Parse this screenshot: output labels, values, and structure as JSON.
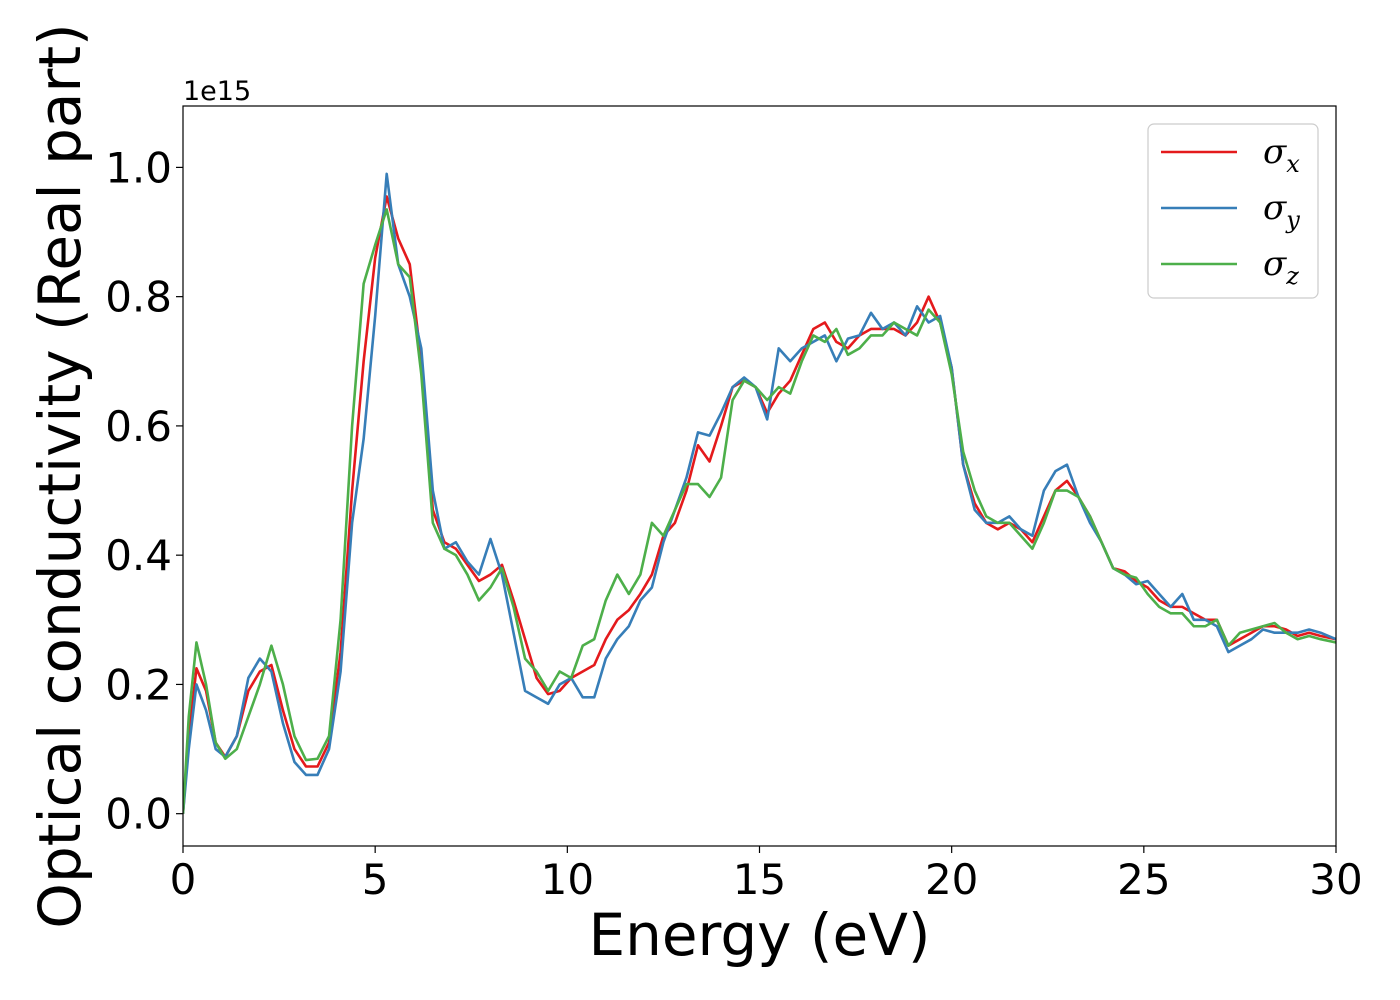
{
  "chart_data": {
    "type": "line",
    "title": "",
    "xlabel": "Energy (eV)",
    "ylabel": "Optical conductivity (Real part)",
    "y_offset_label": "1e15",
    "xlim": [
      0,
      30
    ],
    "ylim": [
      -0.05,
      1.095
    ],
    "xticks": [
      0,
      5,
      10,
      15,
      20,
      25,
      30
    ],
    "xtick_labels": [
      "0",
      "5",
      "10",
      "15",
      "20",
      "25",
      "30"
    ],
    "yticks": [
      0.0,
      0.2,
      0.4,
      0.6,
      0.8,
      1.0
    ],
    "ytick_labels": [
      "0.0",
      "0.2",
      "0.4",
      "0.6",
      "0.8",
      "1.0"
    ],
    "grid": false,
    "legend_position": "top-right",
    "series": [
      {
        "name": "σx",
        "symbol": "σ",
        "subscript": "x",
        "color": "#e41a1c",
        "x": [
          0,
          0.15,
          0.35,
          0.6,
          0.85,
          1.1,
          1.4,
          1.7,
          2.0,
          2.3,
          2.6,
          2.9,
          3.2,
          3.5,
          3.8,
          4.1,
          4.4,
          4.7,
          5.0,
          5.3,
          5.6,
          5.9,
          6.2,
          6.5,
          6.8,
          7.1,
          7.4,
          7.7,
          8.0,
          8.3,
          8.6,
          8.9,
          9.2,
          9.5,
          9.8,
          10.1,
          10.4,
          10.7,
          11.0,
          11.3,
          11.6,
          11.9,
          12.2,
          12.5,
          12.8,
          13.1,
          13.4,
          13.7,
          14.0,
          14.3,
          14.6,
          14.9,
          15.2,
          15.5,
          15.8,
          16.1,
          16.4,
          16.7,
          17.0,
          17.3,
          17.6,
          17.9,
          18.2,
          18.5,
          18.8,
          19.1,
          19.4,
          19.7,
          20.0,
          20.3,
          20.6,
          20.9,
          21.2,
          21.5,
          21.8,
          22.1,
          22.4,
          22.7,
          23.0,
          23.3,
          23.6,
          23.9,
          24.2,
          24.5,
          24.8,
          25.1,
          25.4,
          25.7,
          26.0,
          26.3,
          26.6,
          26.9,
          27.2,
          27.5,
          27.8,
          28.1,
          28.4,
          28.7,
          29.0,
          29.3,
          29.6,
          30.0
        ],
        "y": [
          0.0,
          0.12,
          0.225,
          0.19,
          0.11,
          0.088,
          0.12,
          0.19,
          0.22,
          0.23,
          0.16,
          0.1,
          0.073,
          0.073,
          0.11,
          0.25,
          0.5,
          0.7,
          0.86,
          0.955,
          0.89,
          0.85,
          0.7,
          0.47,
          0.42,
          0.41,
          0.385,
          0.36,
          0.37,
          0.385,
          0.33,
          0.27,
          0.21,
          0.185,
          0.19,
          0.21,
          0.22,
          0.23,
          0.27,
          0.3,
          0.315,
          0.34,
          0.37,
          0.43,
          0.45,
          0.5,
          0.57,
          0.545,
          0.6,
          0.66,
          0.67,
          0.66,
          0.62,
          0.65,
          0.67,
          0.71,
          0.75,
          0.76,
          0.73,
          0.72,
          0.74,
          0.75,
          0.75,
          0.75,
          0.74,
          0.76,
          0.8,
          0.76,
          0.69,
          0.54,
          0.48,
          0.45,
          0.44,
          0.45,
          0.44,
          0.42,
          0.46,
          0.5,
          0.515,
          0.49,
          0.46,
          0.42,
          0.38,
          0.375,
          0.36,
          0.35,
          0.33,
          0.32,
          0.32,
          0.31,
          0.3,
          0.3,
          0.26,
          0.27,
          0.28,
          0.29,
          0.29,
          0.285,
          0.275,
          0.28,
          0.275,
          0.27
        ]
      },
      {
        "name": "σy",
        "symbol": "σ",
        "subscript": "y",
        "color": "#377eb8",
        "x": [
          0,
          0.15,
          0.35,
          0.6,
          0.85,
          1.1,
          1.4,
          1.7,
          2.0,
          2.3,
          2.6,
          2.9,
          3.2,
          3.5,
          3.8,
          4.1,
          4.4,
          4.7,
          5.0,
          5.3,
          5.6,
          5.9,
          6.2,
          6.5,
          6.8,
          7.1,
          7.4,
          7.7,
          8.0,
          8.3,
          8.6,
          8.9,
          9.2,
          9.5,
          9.8,
          10.1,
          10.4,
          10.7,
          11.0,
          11.3,
          11.6,
          11.9,
          12.2,
          12.5,
          12.8,
          13.1,
          13.4,
          13.7,
          14.0,
          14.3,
          14.6,
          14.9,
          15.2,
          15.5,
          15.8,
          16.1,
          16.4,
          16.7,
          17.0,
          17.3,
          17.6,
          17.9,
          18.2,
          18.5,
          18.8,
          19.1,
          19.4,
          19.7,
          20.0,
          20.3,
          20.6,
          20.9,
          21.2,
          21.5,
          21.8,
          22.1,
          22.4,
          22.7,
          23.0,
          23.3,
          23.6,
          23.9,
          24.2,
          24.5,
          24.8,
          25.1,
          25.4,
          25.7,
          26.0,
          26.3,
          26.6,
          26.9,
          27.2,
          27.5,
          27.8,
          28.1,
          28.4,
          28.7,
          29.0,
          29.3,
          29.6,
          30.0
        ],
        "y": [
          0.0,
          0.1,
          0.2,
          0.16,
          0.1,
          0.088,
          0.12,
          0.21,
          0.24,
          0.22,
          0.14,
          0.08,
          0.06,
          0.06,
          0.1,
          0.22,
          0.45,
          0.58,
          0.77,
          0.99,
          0.85,
          0.8,
          0.72,
          0.5,
          0.41,
          0.42,
          0.39,
          0.37,
          0.425,
          0.37,
          0.28,
          0.19,
          0.18,
          0.17,
          0.2,
          0.21,
          0.18,
          0.18,
          0.24,
          0.27,
          0.29,
          0.33,
          0.35,
          0.42,
          0.47,
          0.52,
          0.59,
          0.585,
          0.62,
          0.66,
          0.675,
          0.66,
          0.61,
          0.72,
          0.7,
          0.72,
          0.73,
          0.74,
          0.7,
          0.735,
          0.74,
          0.775,
          0.75,
          0.76,
          0.74,
          0.785,
          0.76,
          0.77,
          0.69,
          0.54,
          0.47,
          0.45,
          0.45,
          0.46,
          0.44,
          0.43,
          0.5,
          0.53,
          0.54,
          0.49,
          0.45,
          0.42,
          0.38,
          0.37,
          0.355,
          0.36,
          0.34,
          0.32,
          0.34,
          0.3,
          0.3,
          0.29,
          0.25,
          0.26,
          0.27,
          0.285,
          0.28,
          0.28,
          0.28,
          0.285,
          0.28,
          0.27
        ]
      },
      {
        "name": "σz",
        "symbol": "σ",
        "subscript": "z",
        "color": "#4daf4a",
        "x": [
          0,
          0.15,
          0.35,
          0.6,
          0.85,
          1.1,
          1.4,
          1.7,
          2.0,
          2.3,
          2.6,
          2.9,
          3.2,
          3.5,
          3.8,
          4.1,
          4.4,
          4.7,
          5.0,
          5.3,
          5.6,
          5.9,
          6.2,
          6.5,
          6.8,
          7.1,
          7.4,
          7.7,
          8.0,
          8.3,
          8.6,
          8.9,
          9.2,
          9.5,
          9.8,
          10.1,
          10.4,
          10.7,
          11.0,
          11.3,
          11.6,
          11.9,
          12.2,
          12.5,
          12.8,
          13.1,
          13.4,
          13.7,
          14.0,
          14.3,
          14.6,
          14.9,
          15.2,
          15.5,
          15.8,
          16.1,
          16.4,
          16.7,
          17.0,
          17.3,
          17.6,
          17.9,
          18.2,
          18.5,
          18.8,
          19.1,
          19.4,
          19.7,
          20.0,
          20.3,
          20.6,
          20.9,
          21.2,
          21.5,
          21.8,
          22.1,
          22.4,
          22.7,
          23.0,
          23.3,
          23.6,
          23.9,
          24.2,
          24.5,
          24.8,
          25.1,
          25.4,
          25.7,
          26.0,
          26.3,
          26.6,
          26.9,
          27.2,
          27.5,
          27.8,
          28.1,
          28.4,
          28.7,
          29.0,
          29.3,
          29.6,
          30.0
        ],
        "y": [
          0.0,
          0.15,
          0.265,
          0.2,
          0.11,
          0.085,
          0.1,
          0.15,
          0.2,
          0.26,
          0.2,
          0.12,
          0.083,
          0.085,
          0.12,
          0.3,
          0.6,
          0.82,
          0.88,
          0.935,
          0.85,
          0.83,
          0.68,
          0.45,
          0.41,
          0.4,
          0.37,
          0.33,
          0.35,
          0.38,
          0.32,
          0.24,
          0.22,
          0.19,
          0.22,
          0.21,
          0.26,
          0.27,
          0.33,
          0.37,
          0.34,
          0.37,
          0.45,
          0.43,
          0.47,
          0.51,
          0.51,
          0.49,
          0.52,
          0.64,
          0.67,
          0.66,
          0.64,
          0.66,
          0.65,
          0.7,
          0.74,
          0.73,
          0.75,
          0.71,
          0.72,
          0.74,
          0.74,
          0.76,
          0.75,
          0.74,
          0.78,
          0.76,
          0.68,
          0.56,
          0.5,
          0.46,
          0.45,
          0.45,
          0.43,
          0.41,
          0.45,
          0.5,
          0.5,
          0.49,
          0.46,
          0.42,
          0.38,
          0.37,
          0.365,
          0.34,
          0.32,
          0.31,
          0.31,
          0.29,
          0.29,
          0.3,
          0.26,
          0.28,
          0.285,
          0.29,
          0.295,
          0.28,
          0.27,
          0.275,
          0.27,
          0.265
        ]
      }
    ]
  }
}
